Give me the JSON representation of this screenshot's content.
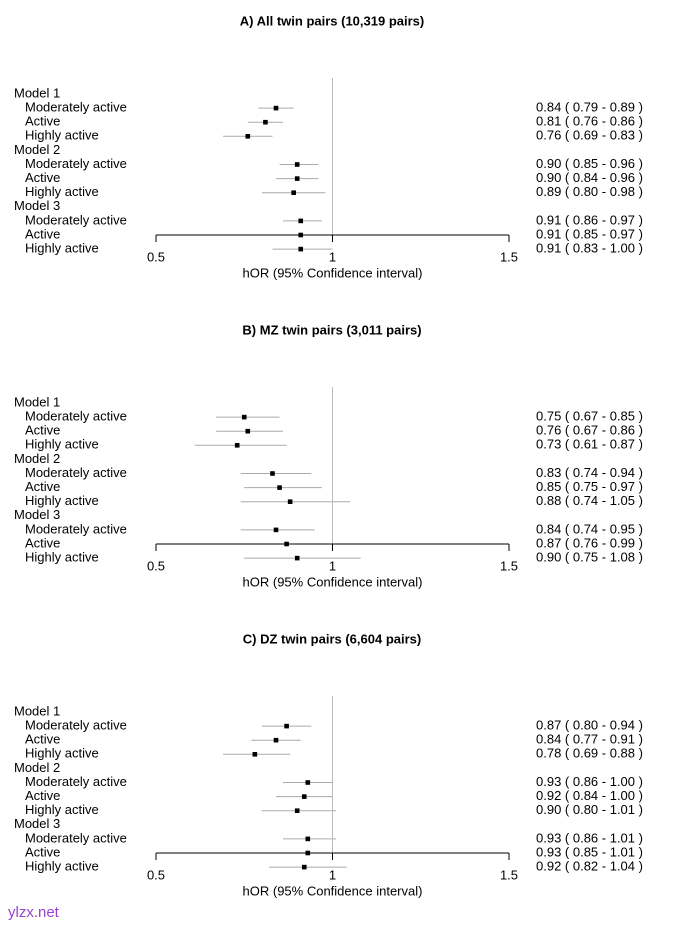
{
  "watermark": "ylzx.net",
  "colors": {
    "point": "#000000",
    "ci_line": "#aaaaaa",
    "ref_line": "#bbbbbb",
    "axis": "#000000",
    "watermark": "#9b3fd0"
  },
  "chart_data": [
    {
      "type": "forest",
      "title": "A) All twin pairs (10,319 pairs)",
      "xlabel": "hOR (95% Confidence interval)",
      "xlim": [
        0.5,
        1.5
      ],
      "xticks": [
        "0.5",
        "1",
        "1.5"
      ],
      "reference_line": 1,
      "models": [
        {
          "name": "Model 1",
          "rows": [
            {
              "label": "Moderately active",
              "or": 0.84,
              "lo": 0.79,
              "hi": 0.89,
              "text": "0.84  ( 0.79 - 0.89 )"
            },
            {
              "label": "Active",
              "or": 0.81,
              "lo": 0.76,
              "hi": 0.86,
              "text": "0.81  ( 0.76 - 0.86 )"
            },
            {
              "label": "Highly active",
              "or": 0.76,
              "lo": 0.69,
              "hi": 0.83,
              "text": "0.76  ( 0.69 - 0.83 )"
            }
          ]
        },
        {
          "name": "Model 2",
          "rows": [
            {
              "label": "Moderately active",
              "or": 0.9,
              "lo": 0.85,
              "hi": 0.96,
              "text": "0.90  ( 0.85 - 0.96 )"
            },
            {
              "label": "Active",
              "or": 0.9,
              "lo": 0.84,
              "hi": 0.96,
              "text": "0.90  ( 0.84 - 0.96 )"
            },
            {
              "label": "Highly active",
              "or": 0.89,
              "lo": 0.8,
              "hi": 0.98,
              "text": "0.89  ( 0.80 - 0.98 )"
            }
          ]
        },
        {
          "name": "Model 3",
          "rows": [
            {
              "label": "Moderately active",
              "or": 0.91,
              "lo": 0.86,
              "hi": 0.97,
              "text": "0.91  ( 0.86 - 0.97 )"
            },
            {
              "label": "Active",
              "or": 0.91,
              "lo": 0.85,
              "hi": 0.97,
              "text": "0.91  ( 0.85 - 0.97 )"
            },
            {
              "label": "Highly active",
              "or": 0.91,
              "lo": 0.83,
              "hi": 1.0,
              "text": "0.91  ( 0.83 - 1.00 )"
            }
          ]
        }
      ]
    },
    {
      "type": "forest",
      "title": "B) MZ twin pairs (3,011 pairs)",
      "xlabel": "hOR (95% Confidence interval)",
      "xlim": [
        0.5,
        1.5
      ],
      "xticks": [
        "0.5",
        "1",
        "1.5"
      ],
      "reference_line": 1,
      "models": [
        {
          "name": "Model 1",
          "rows": [
            {
              "label": "Moderately active",
              "or": 0.75,
              "lo": 0.67,
              "hi": 0.85,
              "text": "0.75  ( 0.67 - 0.85 )"
            },
            {
              "label": "Active",
              "or": 0.76,
              "lo": 0.67,
              "hi": 0.86,
              "text": "0.76  ( 0.67 - 0.86 )"
            },
            {
              "label": "Highly active",
              "or": 0.73,
              "lo": 0.61,
              "hi": 0.87,
              "text": "0.73  ( 0.61 - 0.87 )"
            }
          ]
        },
        {
          "name": "Model 2",
          "rows": [
            {
              "label": "Moderately active",
              "or": 0.83,
              "lo": 0.74,
              "hi": 0.94,
              "text": "0.83  ( 0.74 - 0.94 )"
            },
            {
              "label": "Active",
              "or": 0.85,
              "lo": 0.75,
              "hi": 0.97,
              "text": "0.85  ( 0.75 - 0.97 )"
            },
            {
              "label": "Highly active",
              "or": 0.88,
              "lo": 0.74,
              "hi": 1.05,
              "text": "0.88  ( 0.74 - 1.05 )"
            }
          ]
        },
        {
          "name": "Model 3",
          "rows": [
            {
              "label": "Moderately active",
              "or": 0.84,
              "lo": 0.74,
              "hi": 0.95,
              "text": "0.84  ( 0.74 - 0.95 )"
            },
            {
              "label": "Active",
              "or": 0.87,
              "lo": 0.76,
              "hi": 0.99,
              "text": "0.87  ( 0.76 - 0.99 )"
            },
            {
              "label": "Highly active",
              "or": 0.9,
              "lo": 0.75,
              "hi": 1.08,
              "text": "0.90  ( 0.75 - 1.08 )"
            }
          ]
        }
      ]
    },
    {
      "type": "forest",
      "title": "C) DZ twin pairs (6,604 pairs)",
      "xlabel": "hOR (95% Confidence interval)",
      "xlim": [
        0.5,
        1.5
      ],
      "xticks": [
        "0.5",
        "1",
        "1.5"
      ],
      "reference_line": 1,
      "models": [
        {
          "name": "Model 1",
          "rows": [
            {
              "label": "Moderately active",
              "or": 0.87,
              "lo": 0.8,
              "hi": 0.94,
              "text": "0.87  ( 0.80 - 0.94 )"
            },
            {
              "label": "Active",
              "or": 0.84,
              "lo": 0.77,
              "hi": 0.91,
              "text": "0.84  ( 0.77 - 0.91 )"
            },
            {
              "label": "Highly active",
              "or": 0.78,
              "lo": 0.69,
              "hi": 0.88,
              "text": "0.78  ( 0.69 - 0.88 )"
            }
          ]
        },
        {
          "name": "Model 2",
          "rows": [
            {
              "label": "Moderately active",
              "or": 0.93,
              "lo": 0.86,
              "hi": 1.0,
              "text": "0.93  ( 0.86 - 1.00 )"
            },
            {
              "label": "Active",
              "or": 0.92,
              "lo": 0.84,
              "hi": 1.0,
              "text": "0.92  ( 0.84 - 1.00 )"
            },
            {
              "label": "Highly active",
              "or": 0.9,
              "lo": 0.8,
              "hi": 1.01,
              "text": "0.90  ( 0.80 - 1.01 )"
            }
          ]
        },
        {
          "name": "Model 3",
          "rows": [
            {
              "label": "Moderately active",
              "or": 0.93,
              "lo": 0.86,
              "hi": 1.01,
              "text": "0.93  ( 0.86 - 1.01 )"
            },
            {
              "label": "Active",
              "or": 0.93,
              "lo": 0.85,
              "hi": 1.01,
              "text": "0.93  ( 0.85 - 1.01 )"
            },
            {
              "label": "Highly active",
              "or": 0.92,
              "lo": 0.82,
              "hi": 1.04,
              "text": "0.92  ( 0.82 - 1.04 )"
            }
          ]
        }
      ]
    }
  ]
}
